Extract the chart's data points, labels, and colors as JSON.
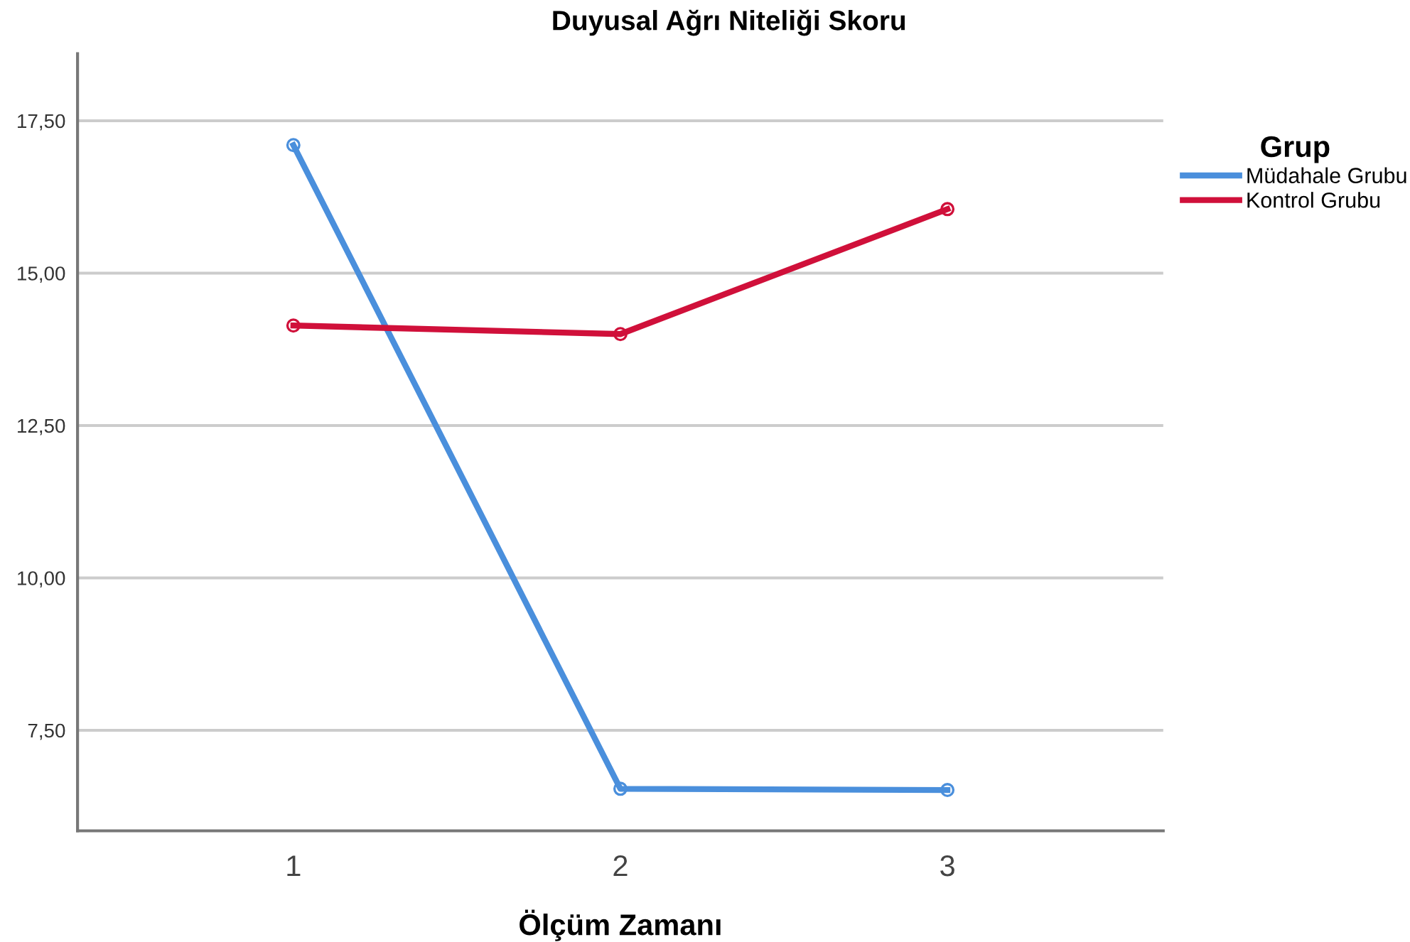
{
  "chart_data": {
    "type": "line",
    "title": "Duyusal Ağrı Niteliği Skoru",
    "xlabel": "Ölçüm Zamanı",
    "legend_title": "Grup",
    "categories": [
      "1",
      "2",
      "3"
    ],
    "series": [
      {
        "name": "Müdahale Grubu",
        "color": "#4a8fdc",
        "values": [
          17.1,
          6.54,
          6.52
        ]
      },
      {
        "name": "Kontrol Grubu",
        "color": "#d0103a",
        "values": [
          14.14,
          14.0,
          16.05
        ]
      }
    ],
    "ylim": [
      5.85,
      18.6
    ],
    "yticks": [
      {
        "value": 7.5,
        "label": "7,50"
      },
      {
        "value": 10,
        "label": "10,00"
      },
      {
        "value": 12.5,
        "label": "12,50"
      },
      {
        "value": 15,
        "label": "15,00"
      },
      {
        "value": 17.5,
        "label": "17,50"
      }
    ],
    "grid": "y",
    "legend": "top right",
    "marker": "circle",
    "line_style": "solid"
  }
}
